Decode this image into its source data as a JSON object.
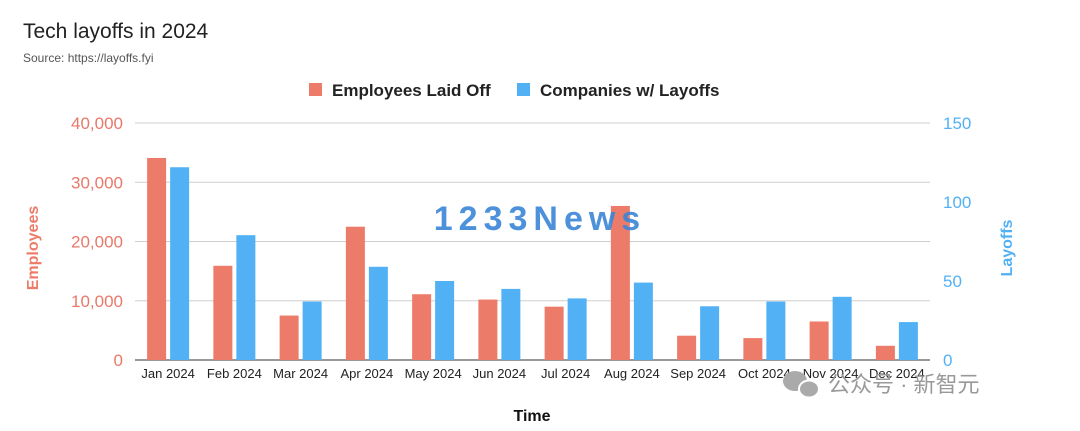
{
  "title": "Tech layoffs in 2024",
  "subtitle": "Source: https://layoffs.fyi",
  "watermark": "1233News",
  "wechat_label": "公众号 · 新智元",
  "colors": {
    "employees": "#ec7b69",
    "companies": "#52b1f5"
  },
  "chart_data": {
    "type": "bar",
    "categories": [
      "Jan 2024",
      "Feb 2024",
      "Mar 2024",
      "Apr 2024",
      "May 2024",
      "Jun 2024",
      "Jul 2024",
      "Aug 2024",
      "Sep 2024",
      "Oct 2024",
      "Nov 2024",
      "Dec 2024"
    ],
    "series": [
      {
        "name": "Employees Laid Off",
        "axis": "left",
        "values": [
          34100,
          15900,
          7500,
          22500,
          11100,
          10200,
          9000,
          26000,
          4100,
          3700,
          6500,
          2400
        ]
      },
      {
        "name": "Companies w/ Layoffs",
        "axis": "right",
        "values": [
          122,
          79,
          37,
          59,
          50,
          45,
          39,
          49,
          34,
          37,
          40,
          24
        ]
      }
    ],
    "xlabel": "Time",
    "ylabel_left": "Employees",
    "ylabel_right": "Layoffs",
    "ylim_left": [
      0,
      40000
    ],
    "ylim_right": [
      0,
      150
    ],
    "yticks_left": [
      "0",
      "10,000",
      "20,000",
      "30,000",
      "40,000"
    ],
    "yticks_right": [
      "0",
      "50",
      "100",
      "150"
    ],
    "grid": true,
    "legend_position": "top-center"
  }
}
